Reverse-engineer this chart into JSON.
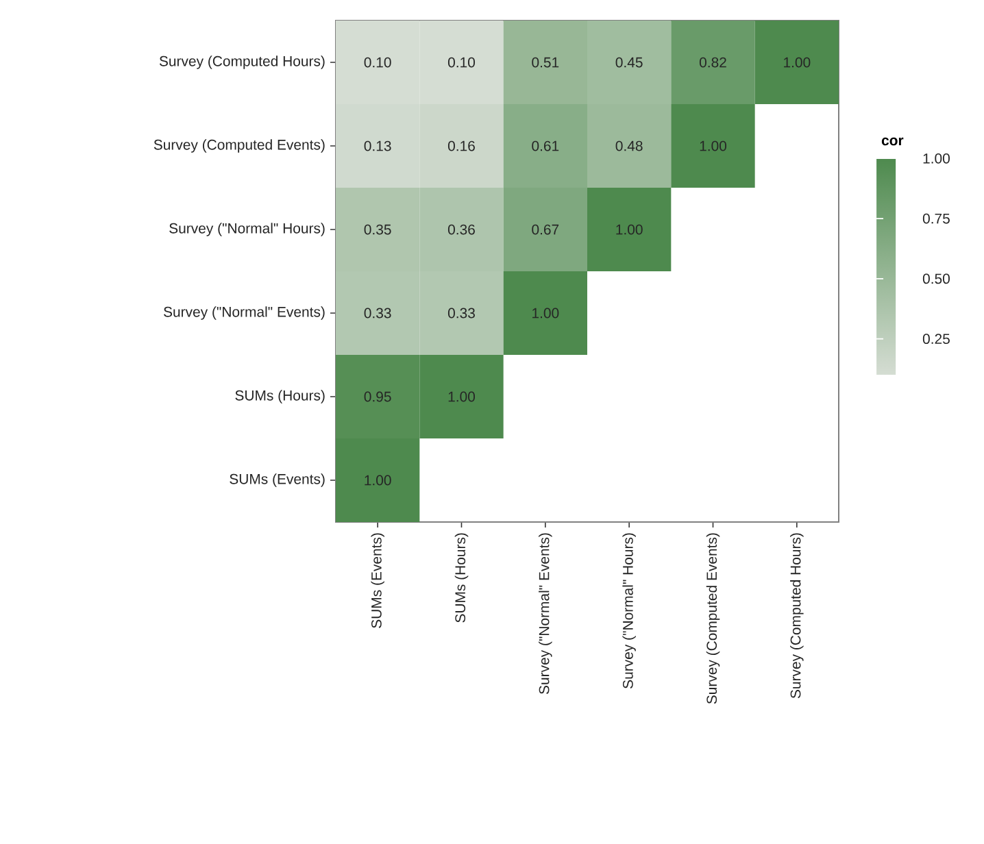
{
  "chart_data": {
    "type": "heatmap",
    "categories": [
      "SUMs (Events)",
      "SUMs (Hours)",
      "Survey (\"Normal\" Events)",
      "Survey (\"Normal\" Hours)",
      "Survey (Computed Events)",
      "Survey (Computed Hours)"
    ],
    "y_categories": [
      "Survey (Computed Hours)",
      "Survey (Computed Events)",
      "Survey (\"Normal\" Hours)",
      "Survey (\"Normal\" Events)",
      "SUMs (Hours)",
      "SUMs (Events)"
    ],
    "cells": [
      [
        0.1,
        0.1,
        0.51,
        0.45,
        0.82,
        1.0
      ],
      [
        0.13,
        0.16,
        0.61,
        0.48,
        1.0,
        null
      ],
      [
        0.35,
        0.36,
        0.67,
        1.0,
        null,
        null
      ],
      [
        0.33,
        0.33,
        1.0,
        null,
        null,
        null
      ],
      [
        0.95,
        1.0,
        null,
        null,
        null,
        null
      ],
      [
        1.0,
        null,
        null,
        null,
        null,
        null
      ]
    ],
    "cell_labels": [
      [
        "0.10",
        "0.10",
        "0.51",
        "0.45",
        "0.82",
        "1.00"
      ],
      [
        "0.13",
        "0.16",
        "0.61",
        "0.48",
        "1.00",
        null
      ],
      [
        "0.35",
        "0.36",
        "0.67",
        "1.00",
        null,
        null
      ],
      [
        "0.33",
        "0.33",
        "1.00",
        null,
        null,
        null
      ],
      [
        "0.95",
        "1.00",
        null,
        null,
        null,
        null
      ],
      [
        "1.00",
        null,
        null,
        null,
        null,
        null
      ]
    ],
    "clabel": "cor",
    "clim": [
      0.1,
      1.0
    ],
    "cticks": [
      0.25,
      {
        "value": 0.5,
        "label": "0.50"
      },
      0.75,
      {
        "value": 1.0,
        "label": "1.00"
      }
    ]
  }
}
